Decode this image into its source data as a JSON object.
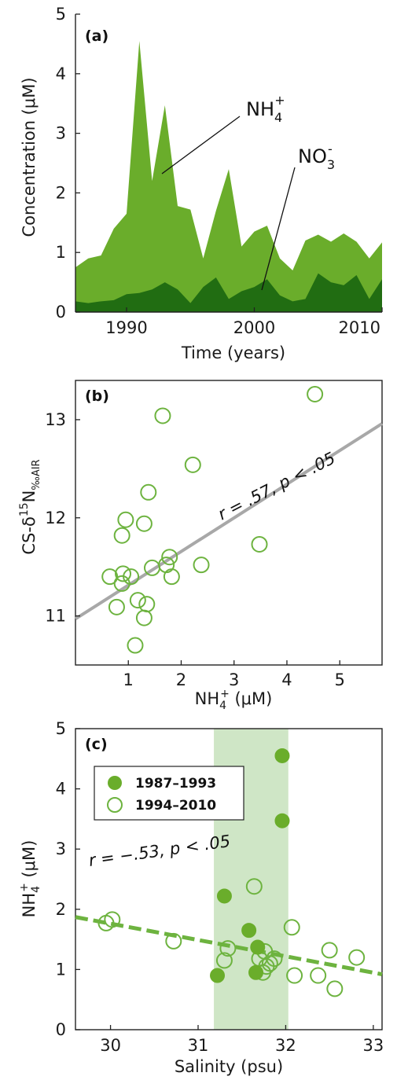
{
  "colors": {
    "nh4": "#6aad2b",
    "no3": "#216d12",
    "open_marker": "#6db33f",
    "regression_b": "#a8a8a8",
    "regression_c": "#6db33f",
    "shade": "#cfe6c6",
    "axis": "#222222"
  },
  "chart_data": [
    {
      "type": "area",
      "panel_label": "(a)",
      "xlabel": "Time (years)",
      "ylabel": "Concentration (μM)",
      "xlim": [
        1986,
        2010
      ],
      "ylim": [
        0,
        5
      ],
      "x_ticks": [
        "1990",
        "2000",
        "2010"
      ],
      "x_tick_values": [
        1990,
        2000,
        2010
      ],
      "y_ticks": [
        "0",
        "1",
        "2",
        "3",
        "4",
        "5"
      ],
      "y_tick_values": [
        0,
        1,
        2,
        3,
        4,
        5
      ],
      "grid": false,
      "series": [
        {
          "name": "NH₄⁺",
          "name_main": "NH",
          "name_sub": "4",
          "name_sup": "+",
          "x": [
            1986,
            1987,
            1988,
            1989,
            1990,
            1991,
            1992,
            1993,
            1994,
            1995,
            1996,
            1997,
            1998,
            1999,
            2000,
            2001,
            2002,
            2003,
            2004,
            2005,
            2006,
            2007,
            2008,
            2009,
            2010
          ],
          "values": [
            0.75,
            0.9,
            0.95,
            1.4,
            1.65,
            4.55,
            2.2,
            3.47,
            1.78,
            1.72,
            0.9,
            1.7,
            2.4,
            1.1,
            1.35,
            1.45,
            0.9,
            0.7,
            1.2,
            1.3,
            1.18,
            1.32,
            1.18,
            0.9,
            1.17
          ]
        },
        {
          "name": "NO₃⁻",
          "name_main": "NO",
          "name_sub": "3",
          "name_sup": "-",
          "x": [
            1986,
            1987,
            1988,
            1989,
            1990,
            1991,
            1992,
            1993,
            1994,
            1995,
            1996,
            1997,
            1998,
            1999,
            2000,
            2001,
            2002,
            2003,
            2004,
            2005,
            2006,
            2007,
            2008,
            2009,
            2010
          ],
          "values": [
            0.18,
            0.15,
            0.18,
            0.2,
            0.3,
            0.32,
            0.38,
            0.5,
            0.38,
            0.15,
            0.42,
            0.58,
            0.22,
            0.35,
            0.42,
            0.55,
            0.28,
            0.18,
            0.22,
            0.65,
            0.5,
            0.45,
            0.62,
            0.22,
            0.55
          ]
        }
      ]
    },
    {
      "type": "scatter",
      "panel_label": "(b)",
      "xlabel_main": "NH",
      "xlabel_sub": "4",
      "xlabel_sup": "+",
      "xlabel_unit": " (μM)",
      "ylabel_main": "CS-δ",
      "ylabel_sup": "15",
      "ylabel_N": "N",
      "ylabel_sub": "‰AIR",
      "xlim": [
        0,
        5.8
      ],
      "ylim": [
        10.5,
        13.4
      ],
      "x_ticks": [
        "1",
        "2",
        "3",
        "4",
        "5"
      ],
      "x_tick_values": [
        1,
        2,
        3,
        4,
        5
      ],
      "y_ticks": [
        "11",
        "12",
        "13"
      ],
      "y_tick_values": [
        11,
        12,
        13
      ],
      "grid": false,
      "points": [
        [
          0.65,
          11.4
        ],
        [
          0.78,
          11.09
        ],
        [
          0.88,
          11.33
        ],
        [
          0.9,
          11.43
        ],
        [
          0.88,
          11.82
        ],
        [
          0.95,
          11.98
        ],
        [
          1.05,
          11.4
        ],
        [
          1.13,
          10.7
        ],
        [
          1.18,
          11.16
        ],
        [
          1.3,
          10.98
        ],
        [
          1.35,
          11.12
        ],
        [
          1.3,
          11.94
        ],
        [
          1.38,
          12.26
        ],
        [
          1.45,
          11.49
        ],
        [
          1.65,
          13.04
        ],
        [
          1.72,
          11.52
        ],
        [
          1.78,
          11.6
        ],
        [
          1.82,
          11.4
        ],
        [
          2.22,
          12.54
        ],
        [
          2.38,
          11.52
        ],
        [
          3.48,
          11.73
        ],
        [
          4.53,
          13.26
        ]
      ],
      "regression": {
        "x": [
          0,
          5.8
        ],
        "y": [
          10.97,
          12.96
        ]
      },
      "annotation": "r = .57, p < .05"
    },
    {
      "type": "scatter",
      "panel_label": "(c)",
      "xlabel": "Salinity (psu)",
      "ylabel_main": "NH",
      "ylabel_sub": "4",
      "ylabel_sup": "+",
      "ylabel_unit": " (μM)",
      "xlim": [
        29.6,
        33.1
      ],
      "ylim": [
        0,
        5
      ],
      "x_ticks": [
        "30",
        "31",
        "32",
        "33"
      ],
      "x_tick_values": [
        30,
        31,
        32,
        33
      ],
      "y_ticks": [
        "0",
        "1",
        "2",
        "3",
        "4",
        "5"
      ],
      "y_tick_values": [
        0,
        1,
        2,
        3,
        4,
        5
      ],
      "grid": false,
      "legend_position": "top-left",
      "shaded_range": [
        31.18,
        32.03
      ],
      "series": [
        {
          "name": "1987–1993",
          "marker": "filled",
          "points": [
            [
              31.22,
              0.9
            ],
            [
              31.3,
              2.22
            ],
            [
              31.58,
              1.65
            ],
            [
              31.66,
              0.95
            ],
            [
              31.68,
              1.37
            ],
            [
              31.96,
              4.55
            ],
            [
              31.96,
              3.47
            ]
          ]
        },
        {
          "name": "1994–2010",
          "marker": "open",
          "points": [
            [
              29.95,
              1.77
            ],
            [
              30.02,
              1.83
            ],
            [
              30.72,
              1.47
            ],
            [
              31.3,
              1.15
            ],
            [
              31.34,
              1.35
            ],
            [
              31.64,
              2.38
            ],
            [
              31.7,
              1.18
            ],
            [
              31.74,
              0.95
            ],
            [
              31.76,
              1.3
            ],
            [
              31.78,
              1.05
            ],
            [
              31.82,
              1.1
            ],
            [
              31.87,
              1.18
            ],
            [
              32.07,
              1.7
            ],
            [
              32.1,
              0.9
            ],
            [
              32.37,
              0.9
            ],
            [
              32.5,
              1.32
            ],
            [
              32.56,
              0.68
            ],
            [
              32.81,
              1.2
            ]
          ]
        }
      ],
      "regression": {
        "x": [
          29.6,
          33.1
        ],
        "y": [
          1.87,
          0.92
        ]
      },
      "annotation": "r = −.53, p < .05"
    }
  ]
}
